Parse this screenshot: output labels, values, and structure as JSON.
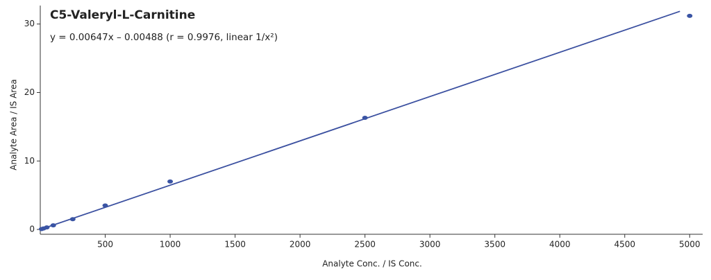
{
  "chart_data": {
    "type": "scatter",
    "title": "C5-Valeryl-L-Carnitine",
    "subtitle": "y = 0.00647x – 0.00488 (r = 0.9976, linear 1/x²)",
    "x_label": "Analyte Conc. / IS Conc.",
    "y_label": "Analyte Area / IS Area",
    "series": [
      {
        "color": "#3a54a4",
        "x": [
          10,
          25,
          50,
          100,
          250,
          500,
          1000,
          2500,
          5000
        ],
        "values": [
          0.06,
          0.15,
          0.3,
          0.6,
          1.5,
          3.5,
          7.0,
          16.3,
          31.2
        ]
      }
    ],
    "fit": {
      "color": "#3b50a0",
      "x": [
        0,
        4925
      ],
      "values": [
        -0.00488,
        31.86
      ]
    },
    "xlim": [
      0,
      5100
    ],
    "ylim": [
      -0.7,
      32.7
    ],
    "xticks": [
      500,
      1000,
      1500,
      2000,
      2500,
      3000,
      3500,
      4000,
      4500,
      5000
    ],
    "yticks": [
      0,
      10,
      20,
      30
    ]
  }
}
